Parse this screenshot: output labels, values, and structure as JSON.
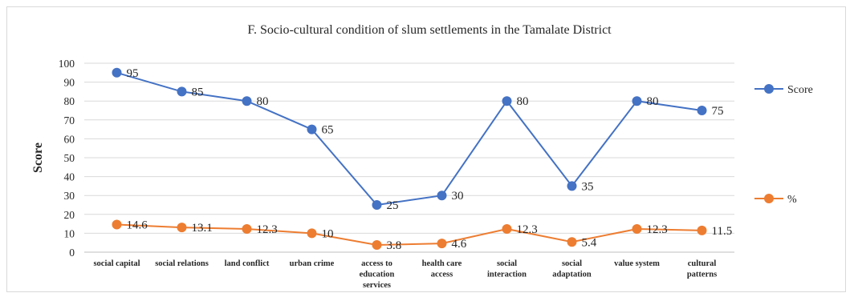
{
  "chart_data": {
    "type": "line",
    "title": "F. Socio-cultural condition of slum settlements in the Tamalate District",
    "ylabel": "Score",
    "xlabel": "",
    "ylim": [
      0,
      100
    ],
    "yticks": [
      0,
      10,
      20,
      30,
      40,
      50,
      60,
      70,
      80,
      90,
      100
    ],
    "grid": true,
    "legend_position": "right",
    "categories": [
      [
        "social capital"
      ],
      [
        "social relations"
      ],
      [
        "land conflict"
      ],
      [
        "urban crime"
      ],
      [
        "access to",
        "education",
        "services"
      ],
      [
        "health care",
        "access"
      ],
      [
        "social",
        "interaction"
      ],
      [
        "social",
        "adaptation"
      ],
      [
        "value system"
      ],
      [
        "cultural",
        "patterns"
      ]
    ],
    "series": [
      {
        "name": "Score",
        "color": "#4472c4",
        "values": [
          95,
          85,
          80,
          65,
          25,
          30,
          80,
          35,
          80,
          75
        ]
      },
      {
        "name": "%",
        "color": "#ed7d31",
        "values": [
          14.6,
          13.1,
          12.3,
          10,
          3.8,
          4.6,
          12.3,
          5.4,
          12.3,
          11.5
        ]
      }
    ]
  }
}
